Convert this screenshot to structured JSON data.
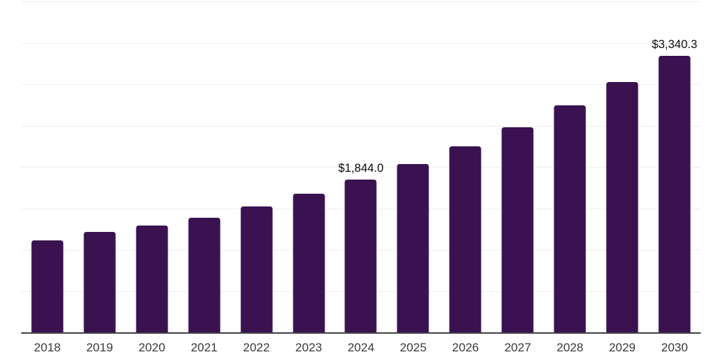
{
  "chart_data": {
    "type": "bar",
    "title": "",
    "xlabel": "",
    "ylabel": "",
    "categories": [
      "2018",
      "2019",
      "2020",
      "2021",
      "2022",
      "2023",
      "2024",
      "2025",
      "2026",
      "2027",
      "2028",
      "2029",
      "2030"
    ],
    "values": [
      1113.0,
      1213.0,
      1292.0,
      1384.0,
      1525.0,
      1677.0,
      1844.0,
      2036.0,
      2248.0,
      2482.0,
      2740.3,
      3025.4,
      3340.3
    ],
    "data_labels": [
      null,
      null,
      null,
      null,
      null,
      null,
      "$1,844.0",
      null,
      null,
      null,
      null,
      null,
      "$3,340.3"
    ],
    "ylim": [
      0,
      4000
    ],
    "grid_step": 500,
    "grid": true,
    "legend": false,
    "y_tick_labels_visible": false,
    "colors": {
      "bar": "#3a1250",
      "axis_line": "#414147",
      "gridline": "#efefef",
      "data_label": "#0b0b0b",
      "x_tick_label": "#3a3a3a",
      "background": "#ffffff"
    }
  }
}
